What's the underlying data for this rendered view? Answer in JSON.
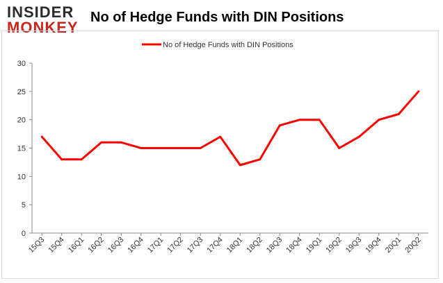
{
  "logo": {
    "line1": "INSIDER",
    "line2": "MONKEY"
  },
  "chart_data": {
    "type": "line",
    "title": "No of Hedge Funds with DIN Positions",
    "xlabel": "",
    "ylabel": "",
    "ylim": [
      0,
      30
    ],
    "yticks": [
      0,
      5,
      10,
      15,
      20,
      25,
      30
    ],
    "grid": false,
    "legend_position": "top",
    "categories": [
      "15Q3",
      "15Q4",
      "16Q1",
      "16Q2",
      "16Q3",
      "16Q4",
      "17Q1",
      "17Q2",
      "17Q3",
      "17Q4",
      "18Q1",
      "18Q2",
      "18Q3",
      "18Q4",
      "19Q1",
      "19Q2",
      "19Q3",
      "19Q4",
      "20Q1",
      "20Q2"
    ],
    "series": [
      {
        "name": "No of Hedge Funds with DIN Positions",
        "color": "#ff0000",
        "values": [
          17,
          13,
          13,
          16,
          16,
          15,
          15,
          15,
          15,
          17,
          12,
          13,
          19,
          20,
          20,
          15,
          17,
          20,
          21,
          25
        ]
      }
    ]
  }
}
